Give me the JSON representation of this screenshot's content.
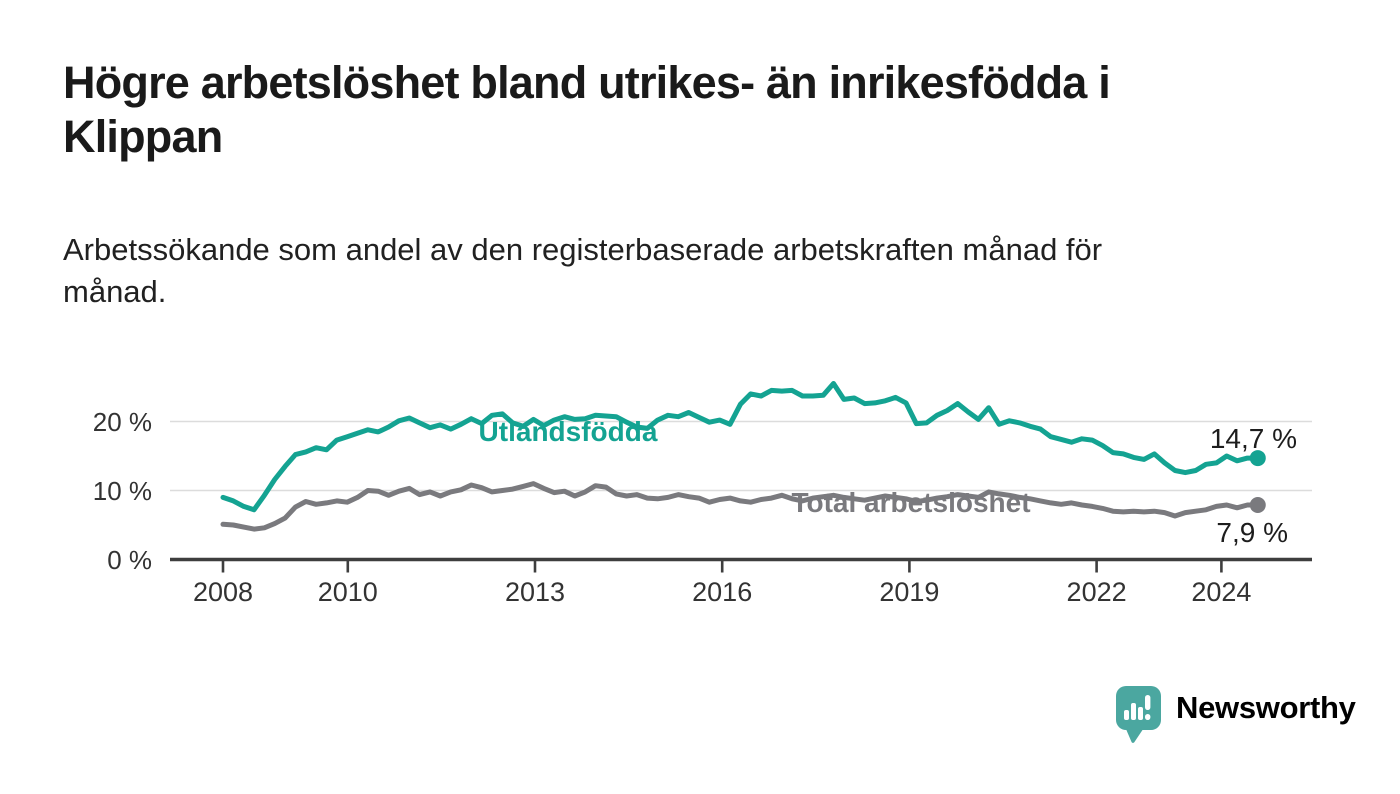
{
  "header": {
    "title_line1": "Högre arbetslöshet bland utrikes- än inrikesfödda i",
    "title_line2": "Klippan",
    "subtitle_line1": "Arbetssökande som andel av den registerbaserade arbetskraften månad för",
    "subtitle_line2": "månad."
  },
  "chart_data": {
    "type": "line",
    "title": "Högre arbetslöshet bland utrikes- än inrikesfödda i Klippan",
    "subtitle": "Arbetssökande som andel av den registerbaserade arbetskraften månad för månad.",
    "x_start": 2008,
    "x_end": 2024.583,
    "x_unit": "year, monthly series",
    "ylim": [
      0,
      27
    ],
    "xlim": [
      2007.2,
      2025.4
    ],
    "grid": "horizontal",
    "legend_position": "inline-labels",
    "colors": {
      "accent_teal": "#14A392",
      "gray": "#7A7A7E",
      "gridline": "#DCDCDC",
      "axis": "#3E3E3E",
      "tick_text": "#333333",
      "value_text": "#1D1D1D"
    },
    "y_ticks": [
      {
        "label": "0 %",
        "value": 0
      },
      {
        "label": "10 %",
        "value": 10
      },
      {
        "label": "20 %",
        "value": 20
      }
    ],
    "x_ticks": [
      {
        "label": "2008",
        "value": 2008
      },
      {
        "label": "2010",
        "value": 2010
      },
      {
        "label": "2013",
        "value": 2013
      },
      {
        "label": "2016",
        "value": 2016
      },
      {
        "label": "2019",
        "value": 2019
      },
      {
        "label": "2022",
        "value": 2022
      },
      {
        "label": "2024",
        "value": 2024
      }
    ],
    "series": [
      {
        "name": "Utlandsfödda",
        "color": "#14A392",
        "end_label": "14,7 %",
        "end_value": 14.7,
        "values": [
          9.0,
          8.5,
          7.7,
          7.2,
          9.3,
          11.6,
          13.5,
          15.2,
          15.6,
          16.2,
          15.9,
          17.3,
          17.8,
          18.3,
          18.8,
          18.5,
          19.2,
          20.1,
          20.5,
          19.8,
          19.1,
          19.5,
          18.9,
          19.6,
          20.4,
          19.7,
          20.9,
          21.1,
          19.8,
          19.3,
          20.3,
          19.4,
          20.2,
          20.7,
          20.3,
          20.4,
          20.9,
          20.8,
          20.7,
          19.9,
          19.2,
          19.0,
          20.2,
          20.9,
          20.7,
          21.3,
          20.6,
          19.9,
          20.2,
          19.6,
          22.5,
          24.0,
          23.7,
          24.5,
          24.4,
          24.5,
          23.7,
          23.7,
          23.8,
          25.5,
          23.2,
          23.4,
          22.6,
          22.7,
          23.0,
          23.5,
          22.7,
          19.7,
          19.8,
          20.9,
          21.6,
          22.6,
          21.4,
          20.3,
          22.0,
          19.6,
          20.1,
          19.8,
          19.3,
          18.9,
          17.8,
          17.4,
          17.0,
          17.5,
          17.3,
          16.5,
          15.5,
          15.3,
          14.8,
          14.5,
          15.3,
          14.0,
          12.9,
          12.6,
          12.9,
          13.8,
          14.0,
          15.0,
          14.3,
          14.7,
          14.7
        ]
      },
      {
        "name": "Total arbetslöshet",
        "color": "#7A7A7E",
        "end_label": "7,9 %",
        "end_value": 7.9,
        "values": [
          5.1,
          5.0,
          4.7,
          4.4,
          4.6,
          5.2,
          6.0,
          7.6,
          8.4,
          8.0,
          8.2,
          8.5,
          8.3,
          9.0,
          10.0,
          9.9,
          9.3,
          9.9,
          10.3,
          9.4,
          9.8,
          9.2,
          9.8,
          10.1,
          10.8,
          10.4,
          9.8,
          10.0,
          10.2,
          10.6,
          11.0,
          10.3,
          9.7,
          9.9,
          9.2,
          9.8,
          10.7,
          10.5,
          9.5,
          9.2,
          9.4,
          8.9,
          8.8,
          9.0,
          9.4,
          9.1,
          8.9,
          8.3,
          8.7,
          8.9,
          8.5,
          8.3,
          8.7,
          8.9,
          9.3,
          8.8,
          8.5,
          8.9,
          9.1,
          9.3,
          9.0,
          8.8,
          8.6,
          8.9,
          9.2,
          9.0,
          8.8,
          8.4,
          8.6,
          8.9,
          9.1,
          9.4,
          9.2,
          9.0,
          9.8,
          9.5,
          9.3,
          9.0,
          8.8,
          8.5,
          8.2,
          8.0,
          8.2,
          7.9,
          7.7,
          7.4,
          7.0,
          6.9,
          7.0,
          6.9,
          7.0,
          6.8,
          6.3,
          6.8,
          7.0,
          7.2,
          7.7,
          7.9,
          7.5,
          7.9,
          7.9
        ]
      }
    ]
  },
  "branding": {
    "logo_text": "Newsworthy",
    "logo_color": "#4BA7A0",
    "logo_icon": "speech-bubble-bar-chart-icon"
  }
}
